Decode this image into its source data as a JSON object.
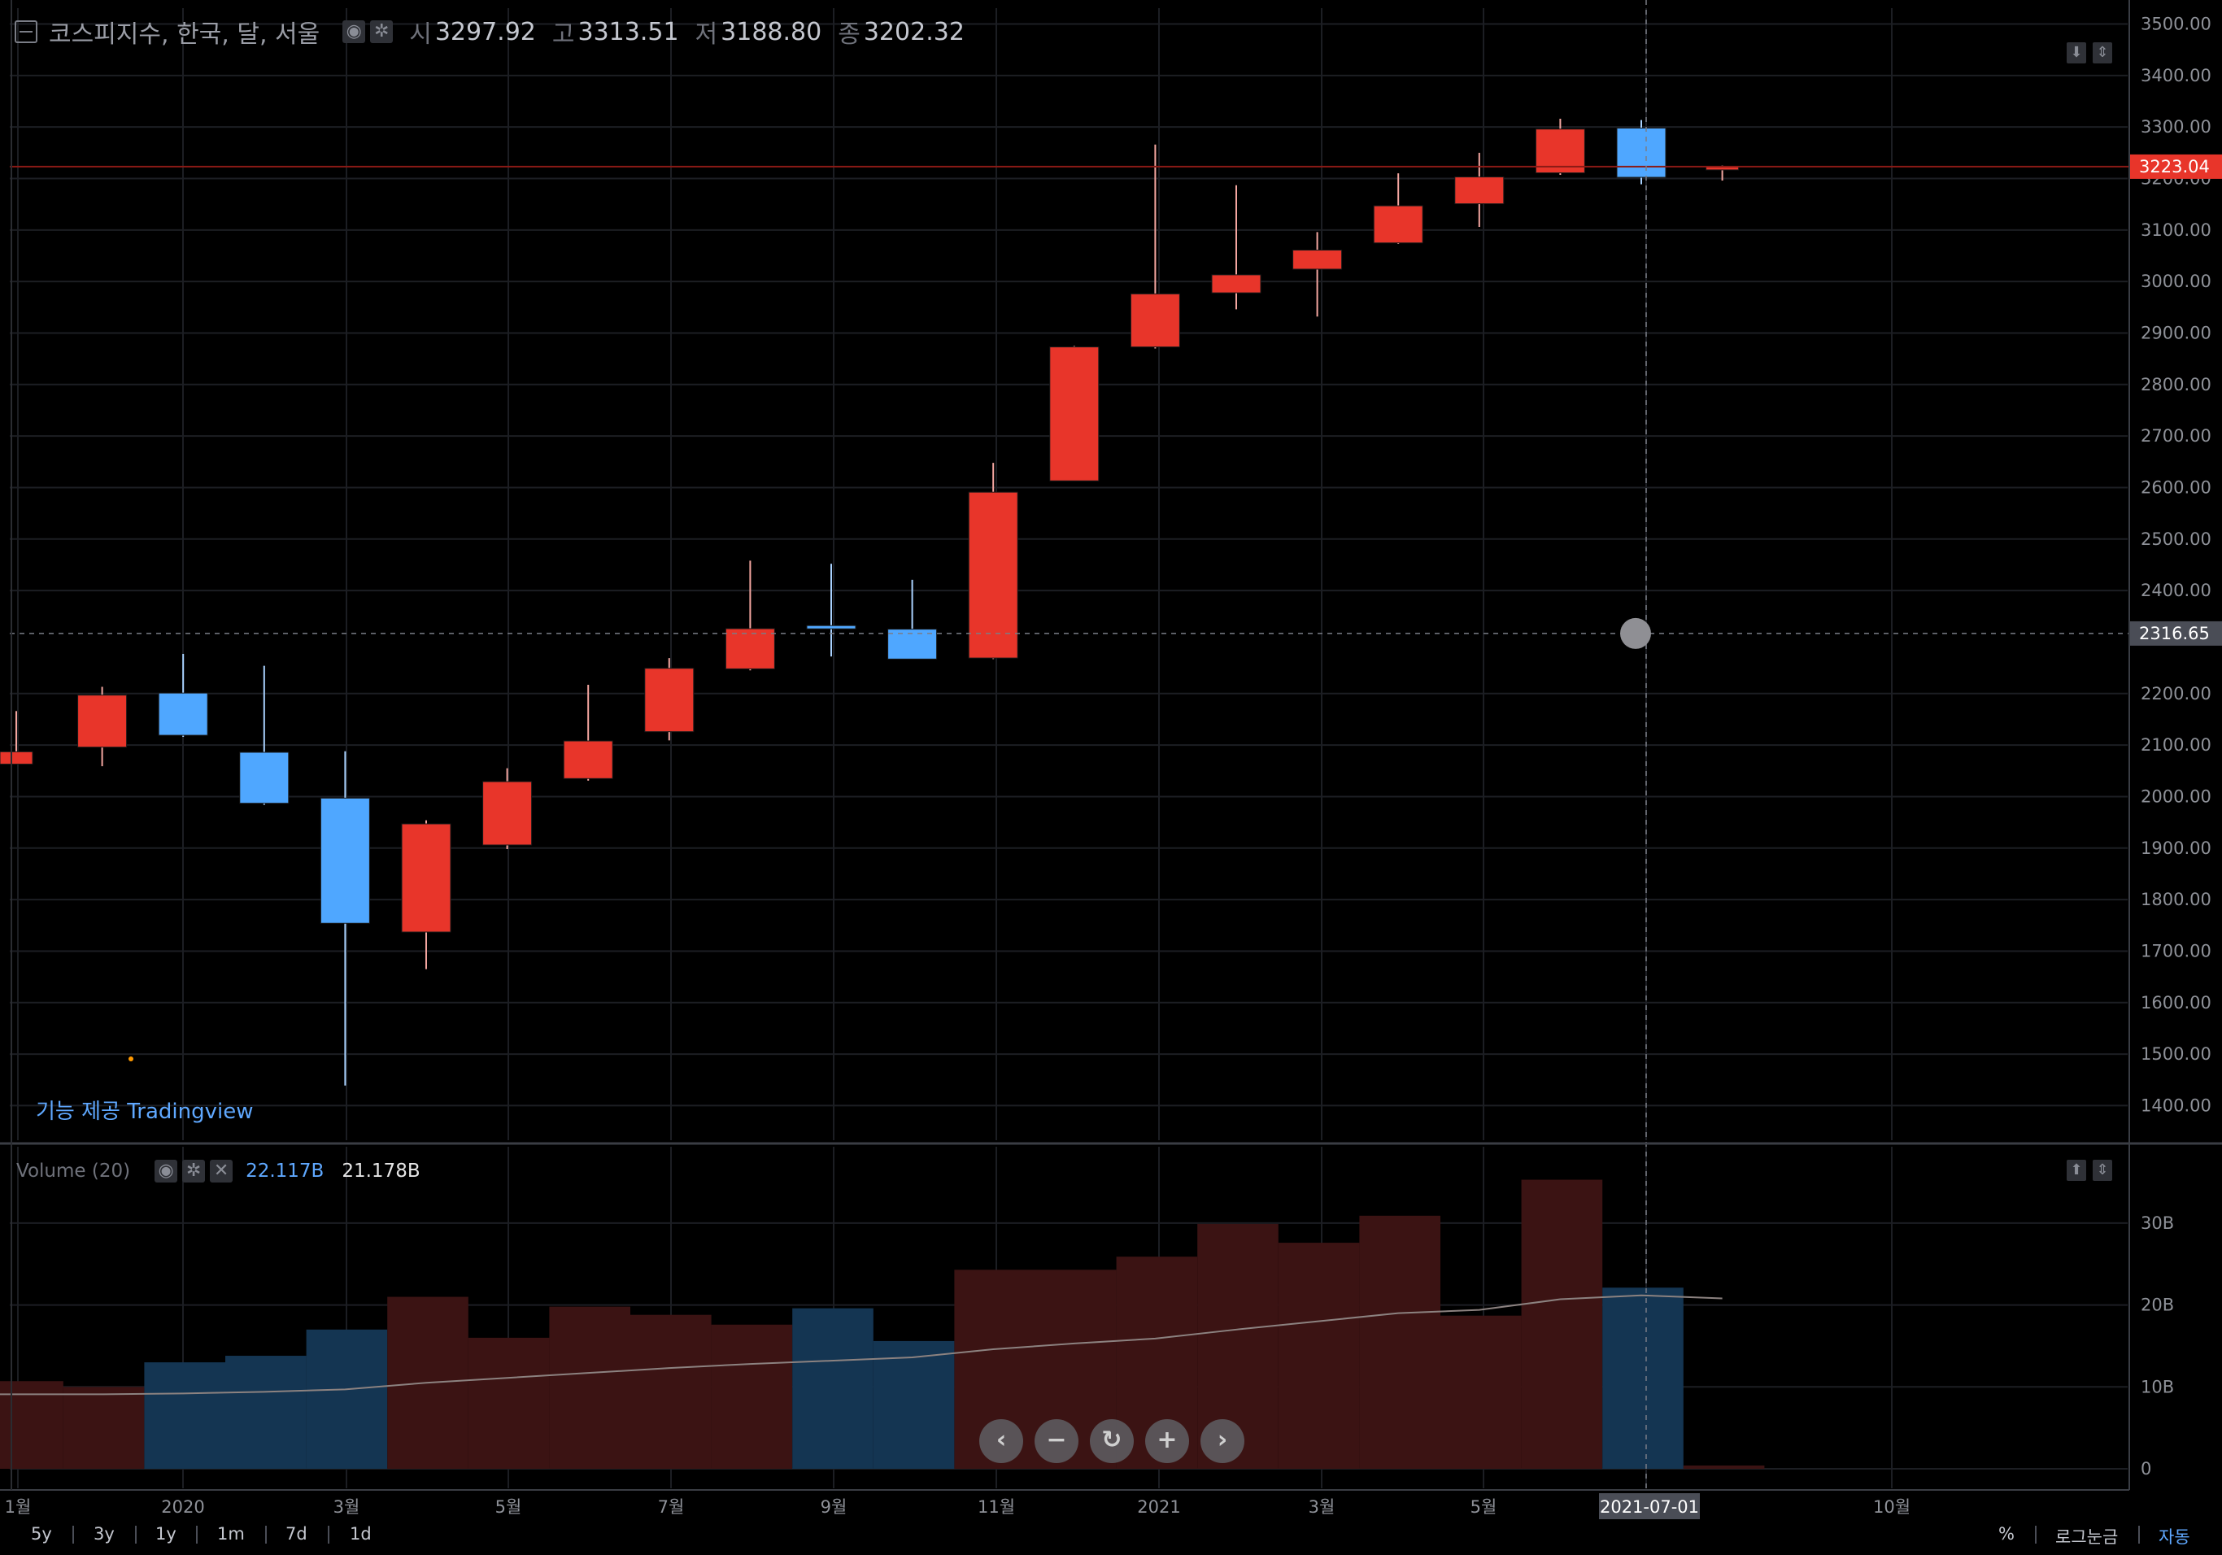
{
  "legend": {
    "symbol": "코스피지수, 한국, 달, 서울",
    "open_label": "시",
    "open": "3297.92",
    "high_label": "고",
    "high": "3313.51",
    "low_label": "저",
    "low": "3188.80",
    "close_label": "종",
    "close": "3202.32"
  },
  "credit": "기능 제공 Tradingview",
  "volume_legend": {
    "title": "Volume (20)",
    "value1": "22.117B",
    "value2": "21.178B"
  },
  "price_labels": {
    "last": "3223.04",
    "crosshair": "2316.65"
  },
  "crosshair_date": "2021-07-01",
  "colors": {
    "up": "#e8352a",
    "down": "#4fa7ff",
    "vol_up": "#3b1313",
    "vol_down": "#143552",
    "last_price": "#e8352a"
  },
  "chart_data": [
    {
      "type": "candlestick",
      "title": "코스피지수, 한국, 달, 서울",
      "x_labels": [
        "1월",
        "2020",
        "3월",
        "5월",
        "7월",
        "9월",
        "11월",
        "2021",
        "3월",
        "5월",
        "2021-07-01",
        "10월"
      ],
      "y_ticks": [
        "3500.00",
        "3400.00",
        "3300.00",
        "3200.00",
        "3100.00",
        "3000.00",
        "2900.00",
        "2800.00",
        "2700.00",
        "2600.00",
        "2500.00",
        "2400.00",
        "2200.00",
        "2100.00",
        "2000.00",
        "1900.00",
        "1800.00",
        "1700.00",
        "1600.00",
        "1500.00",
        "1400.00"
      ],
      "ylim": [
        1320,
        3530
      ],
      "candles": [
        {
          "date": "2019-11",
          "open": 2063,
          "high": 2166,
          "low": 2080,
          "close": 2087
        },
        {
          "date": "2019-12",
          "open": 2096,
          "high": 2213,
          "low": 2059,
          "close": 2197
        },
        {
          "date": "2020-01",
          "open": 2201,
          "high": 2277,
          "low": 2116,
          "close": 2119
        },
        {
          "date": "2020-02",
          "open": 2086,
          "high": 2254,
          "low": 1984,
          "close": 1987
        },
        {
          "date": "2020-03",
          "open": 1997,
          "high": 2088,
          "low": 1439,
          "close": 1754
        },
        {
          "date": "2020-04",
          "open": 1737,
          "high": 1954,
          "low": 1665,
          "close": 1947
        },
        {
          "date": "2020-05",
          "open": 1906,
          "high": 2055,
          "low": 1898,
          "close": 2029
        },
        {
          "date": "2020-06",
          "open": 2035,
          "high": 2217,
          "low": 2031,
          "close": 2108
        },
        {
          "date": "2020-07",
          "open": 2126,
          "high": 2269,
          "low": 2109,
          "close": 2249
        },
        {
          "date": "2020-08",
          "open": 2248,
          "high": 2458,
          "low": 2245,
          "close": 2326
        },
        {
          "date": "2020-09",
          "open": 2332,
          "high": 2452,
          "low": 2272,
          "close": 2328
        },
        {
          "date": "2020-10",
          "open": 2325,
          "high": 2421,
          "low": 2267,
          "close": 2267
        },
        {
          "date": "2020-11",
          "open": 2269,
          "high": 2648,
          "low": 2267,
          "close": 2591
        },
        {
          "date": "2020-12",
          "open": 2613,
          "high": 2875,
          "low": 2613,
          "close": 2873
        },
        {
          "date": "2021-01",
          "open": 2873,
          "high": 3266,
          "low": 2870,
          "close": 2976
        },
        {
          "date": "2021-02",
          "open": 2978,
          "high": 3187,
          "low": 2946,
          "close": 3013
        },
        {
          "date": "2021-03",
          "open": 3024,
          "high": 3096,
          "low": 2932,
          "close": 3061
        },
        {
          "date": "2021-04",
          "open": 3075,
          "high": 3210,
          "low": 3073,
          "close": 3147
        },
        {
          "date": "2021-05",
          "open": 3151,
          "high": 3250,
          "low": 3106,
          "close": 3203
        },
        {
          "date": "2021-06",
          "open": 3211,
          "high": 3316,
          "low": 3207,
          "close": 3296
        },
        {
          "date": "2021-07",
          "open": 3297.92,
          "high": 3313.51,
          "low": 3188.8,
          "close": 3202.32
        },
        {
          "date": "2021-08",
          "open": 3223,
          "high": 3225,
          "low": 3196,
          "close": 3223.04
        }
      ],
      "last_price": 3223.04
    },
    {
      "type": "bar",
      "title": "Volume (20)",
      "y_ticks": [
        "30B",
        "20B",
        "10B",
        "0"
      ],
      "ylim": [
        0,
        35.5
      ],
      "unit": "B",
      "volume": [
        10.7,
        10.0,
        13.0,
        13.8,
        17.0,
        21.0,
        16.0,
        19.8,
        18.8,
        17.6,
        19.6,
        15.6,
        24.3,
        24.3,
        25.9,
        29.9,
        27.6,
        30.9,
        18.7,
        35.3,
        22.117,
        0.4
      ],
      "volume_direction": [
        "up",
        "up",
        "down",
        "down",
        "down",
        "up",
        "up",
        "up",
        "up",
        "up",
        "down",
        "down",
        "up",
        "up",
        "up",
        "up",
        "up",
        "up",
        "up",
        "up",
        "down",
        "up"
      ],
      "ma20": [
        9.1,
        9.1,
        9.2,
        9.4,
        9.7,
        10.5,
        11.1,
        11.7,
        12.3,
        12.8,
        13.2,
        13.6,
        14.6,
        15.3,
        15.9,
        17.0,
        18.0,
        19.0,
        19.4,
        20.7,
        21.178,
        20.8
      ]
    }
  ],
  "range_buttons": [
    "5y",
    "3y",
    "1y",
    "1m",
    "7d",
    "1d"
  ],
  "bottom_right": {
    "percent": "%",
    "log": "로그눈금",
    "auto": "자동"
  },
  "nav_buttons": [
    "‹",
    "−",
    "↻",
    "+",
    "›"
  ]
}
